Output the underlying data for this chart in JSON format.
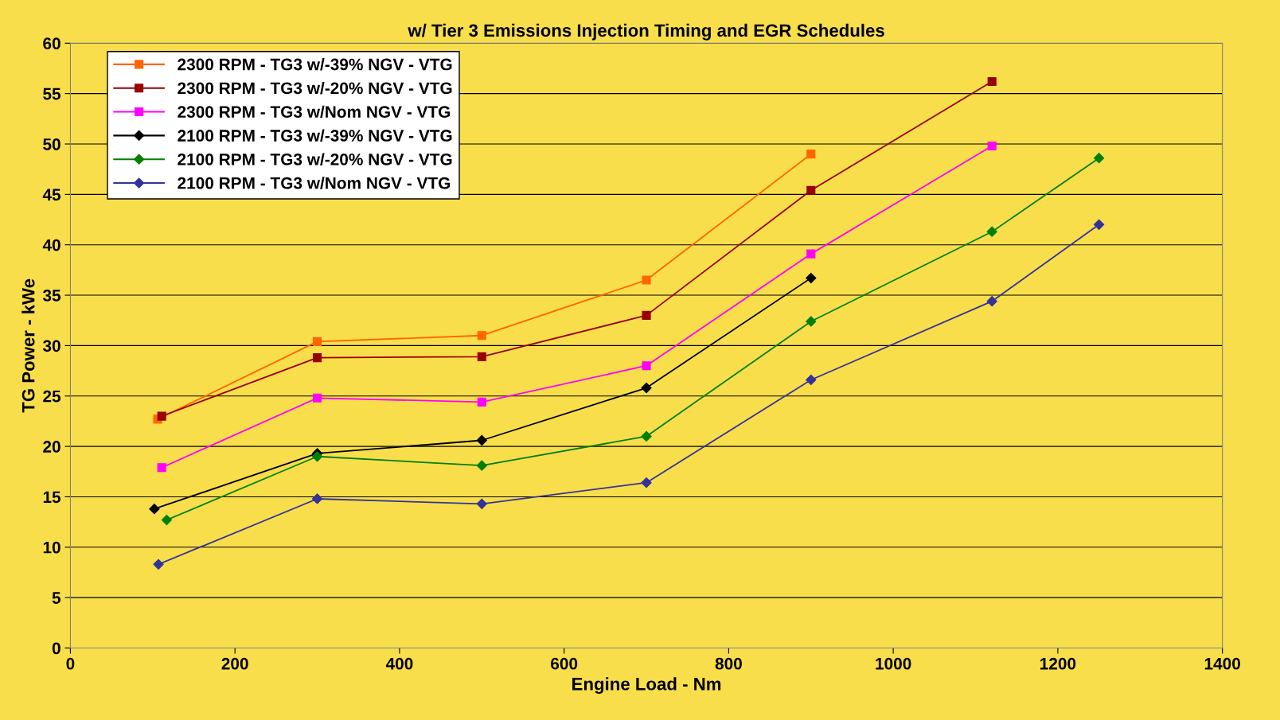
{
  "chart_data": {
    "type": "line",
    "title": "w/ Tier 3 Emissions Injection Timing and EGR Schedules",
    "xlabel": "Engine Load - Nm",
    "ylabel": "TG Power - kWe",
    "xlim": [
      0,
      1400
    ],
    "xticks": [
      0,
      200,
      400,
      600,
      800,
      1000,
      1200,
      1400
    ],
    "ylim": [
      0,
      60
    ],
    "yticks": [
      0,
      5,
      10,
      15,
      20,
      25,
      30,
      35,
      40,
      45,
      50,
      55,
      60
    ],
    "grid": "y",
    "legend": "top left",
    "line_style": "solid",
    "series": [
      {
        "name": "2300 RPM - TG3 w/-39% NGV - VTG",
        "color": "#ff6600",
        "marker": "square",
        "x": [
          106,
          300,
          500,
          700,
          900
        ],
        "values": [
          22.7,
          30.4,
          31.0,
          36.5,
          49.0
        ]
      },
      {
        "name": "2300 RPM - TG3 w/-20% NGV - VTG",
        "color": "#990000",
        "marker": "square",
        "x": [
          111,
          300,
          500,
          700,
          900,
          1120
        ],
        "values": [
          23.0,
          28.8,
          28.9,
          33.0,
          45.4,
          56.2
        ]
      },
      {
        "name": "2300 RPM - TG3 w/Nom NGV - VTG",
        "color": "#ff00ff",
        "marker": "square",
        "x": [
          111,
          300,
          500,
          700,
          900,
          1120
        ],
        "values": [
          17.9,
          24.8,
          24.4,
          28.0,
          39.1,
          49.8
        ]
      },
      {
        "name": "2100 RPM - TG3 w/-39% NGV - VTG",
        "color": "#000000",
        "marker": "diamond",
        "x": [
          102,
          300,
          500,
          700,
          900
        ],
        "values": [
          13.8,
          19.3,
          20.6,
          25.8,
          36.7
        ]
      },
      {
        "name": "2100 RPM - TG3 w/-20% NGV - VTG",
        "color": "#008000",
        "marker": "diamond",
        "x": [
          117,
          300,
          500,
          700,
          900,
          1120,
          1250
        ],
        "values": [
          12.7,
          19.0,
          18.1,
          21.0,
          32.4,
          41.3,
          48.6
        ]
      },
      {
        "name": "2100 RPM - TG3 w/Nom NGV - VTG",
        "color": "#333399",
        "marker": "diamond",
        "x": [
          107,
          300,
          500,
          700,
          900,
          1120,
          1250
        ],
        "values": [
          8.3,
          14.8,
          14.3,
          16.4,
          26.6,
          34.4,
          42.0
        ]
      }
    ]
  }
}
